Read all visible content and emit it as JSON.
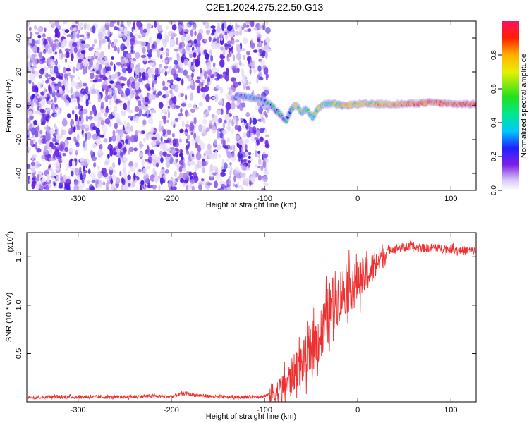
{
  "title": "C2E1.2024.275.22.50.G13",
  "chart_data": [
    {
      "type": "heatmap",
      "xlabel": "Height of straight line (km)",
      "ylabel": "Frequency (Hz)",
      "xlim": [
        -355,
        127
      ],
      "ylim": [
        -50,
        50
      ],
      "x_ticks": [
        -300,
        -200,
        -100,
        0,
        100
      ],
      "y_ticks": [
        -40,
        -20,
        0,
        20,
        40
      ],
      "noise_region_x": [
        -355,
        -100
      ],
      "noise_freq_range": [
        -50,
        50
      ],
      "signal_trace": [
        {
          "x": -130,
          "y": 6
        },
        {
          "x": -118,
          "y": 5
        },
        {
          "x": -105,
          "y": 4
        },
        {
          "x": -95,
          "y": 1
        },
        {
          "x": -85,
          "y": -4
        },
        {
          "x": -77,
          "y": -9
        },
        {
          "x": -72,
          "y": -3
        },
        {
          "x": -66,
          "y": 1
        },
        {
          "x": -60,
          "y": -4
        },
        {
          "x": -55,
          "y": -2
        },
        {
          "x": -48,
          "y": -7
        },
        {
          "x": -42,
          "y": -1
        },
        {
          "x": -35,
          "y": 1
        },
        {
          "x": -25,
          "y": 1
        },
        {
          "x": -15,
          "y": 0
        },
        {
          "x": 0,
          "y": 1
        },
        {
          "x": 20,
          "y": 1
        },
        {
          "x": 50,
          "y": 1
        },
        {
          "x": 80,
          "y": 2
        },
        {
          "x": 100,
          "y": 1
        },
        {
          "x": 127,
          "y": 1
        }
      ],
      "colorbar": {
        "label": "Normalized spectral amplitude",
        "range": [
          0,
          1
        ],
        "ticks": [
          "0.0",
          "0.2",
          "0.4",
          "0.6",
          "0.8"
        ]
      }
    },
    {
      "type": "line",
      "xlabel": "Height of straight line (km)",
      "ylabel": "SNR (10 * v/v)",
      "y_scale_label": "(x10",
      "y_scale_exp": "4",
      "xlim": [
        -355,
        127
      ],
      "ylim": [
        0,
        17500
      ],
      "x_ticks": [
        -300,
        -200,
        -100,
        0,
        100
      ],
      "y_ticks": [
        {
          "value": 5000,
          "label": "0.5"
        },
        {
          "value": 10000,
          "label": "1.0"
        },
        {
          "value": 15000,
          "label": "1.5"
        }
      ],
      "color": "#ee3030",
      "series": [
        {
          "values": [
            {
              "x": -355,
              "y": 500
            },
            {
              "x": -250,
              "y": 500
            },
            {
              "x": -220,
              "y": 600
            },
            {
              "x": -200,
              "y": 550
            },
            {
              "x": -185,
              "y": 900
            },
            {
              "x": -175,
              "y": 700
            },
            {
              "x": -150,
              "y": 500
            },
            {
              "x": -120,
              "y": 500
            },
            {
              "x": -100,
              "y": 600
            },
            {
              "x": -85,
              "y": 1000
            },
            {
              "x": -75,
              "y": 2000
            },
            {
              "x": -65,
              "y": 3500
            },
            {
              "x": -55,
              "y": 4500
            },
            {
              "x": -45,
              "y": 6000
            },
            {
              "x": -35,
              "y": 8000
            },
            {
              "x": -25,
              "y": 10500
            },
            {
              "x": -15,
              "y": 11500
            },
            {
              "x": -5,
              "y": 12000
            },
            {
              "x": 5,
              "y": 12800
            },
            {
              "x": 15,
              "y": 13700
            },
            {
              "x": 25,
              "y": 15000
            },
            {
              "x": 35,
              "y": 15800
            },
            {
              "x": 50,
              "y": 16000
            },
            {
              "x": 70,
              "y": 15900
            },
            {
              "x": 90,
              "y": 15900
            },
            {
              "x": 110,
              "y": 15700
            },
            {
              "x": 127,
              "y": 15600
            }
          ]
        }
      ]
    }
  ]
}
